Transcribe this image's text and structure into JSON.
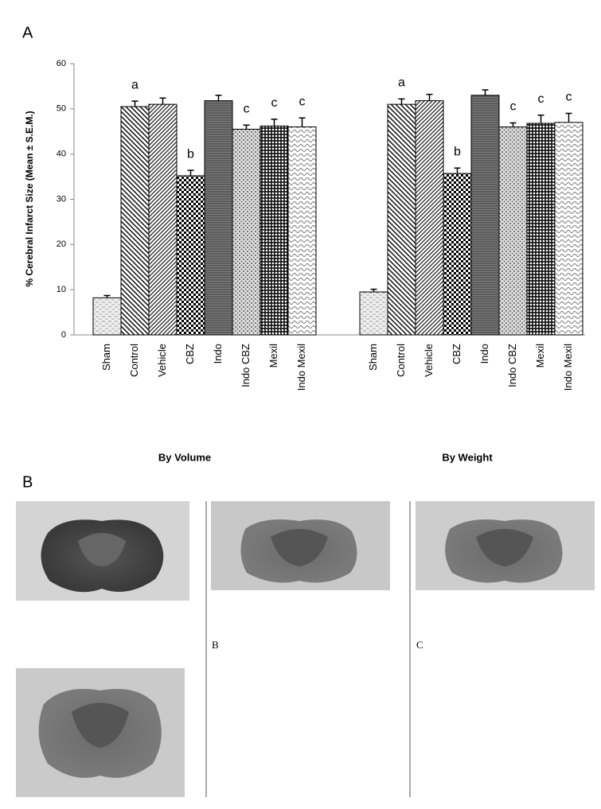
{
  "panel_a": {
    "label": "A"
  },
  "chart_data": {
    "type": "bar",
    "y_label": "% Cerebral Infarct Size (Mean ± S.E.M.)",
    "categories": [
      "Sham",
      "Control",
      "Vehicle",
      "CBZ",
      "Indo",
      "Indo CBZ",
      "Mexil",
      "Indo Mexil"
    ],
    "groups": [
      {
        "name": "By Volume",
        "values": [
          8.2,
          50.5,
          51,
          35.2,
          51.8,
          45.5,
          46.2,
          46
        ],
        "errors": [
          0.5,
          1.2,
          1.4,
          1.2,
          1.2,
          0.9,
          1.5,
          2
        ],
        "annotations": [
          null,
          "a",
          null,
          "b",
          null,
          "c",
          "c",
          "c"
        ]
      },
      {
        "name": "By Weight",
        "values": [
          9.5,
          51,
          51.8,
          35.7,
          53,
          46,
          46.8,
          47
        ],
        "errors": [
          0.6,
          1.2,
          1.4,
          1.2,
          1.2,
          0.9,
          1.8,
          2
        ],
        "annotations": [
          null,
          "a",
          null,
          "b",
          null,
          "c",
          "c",
          "c"
        ]
      }
    ],
    "ylim": [
      0,
      60
    ],
    "yticks": [
      0,
      10,
      20,
      30,
      40,
      50,
      60
    ]
  },
  "panel_b": {
    "label": "B",
    "captions": [
      "B",
      "C"
    ]
  }
}
